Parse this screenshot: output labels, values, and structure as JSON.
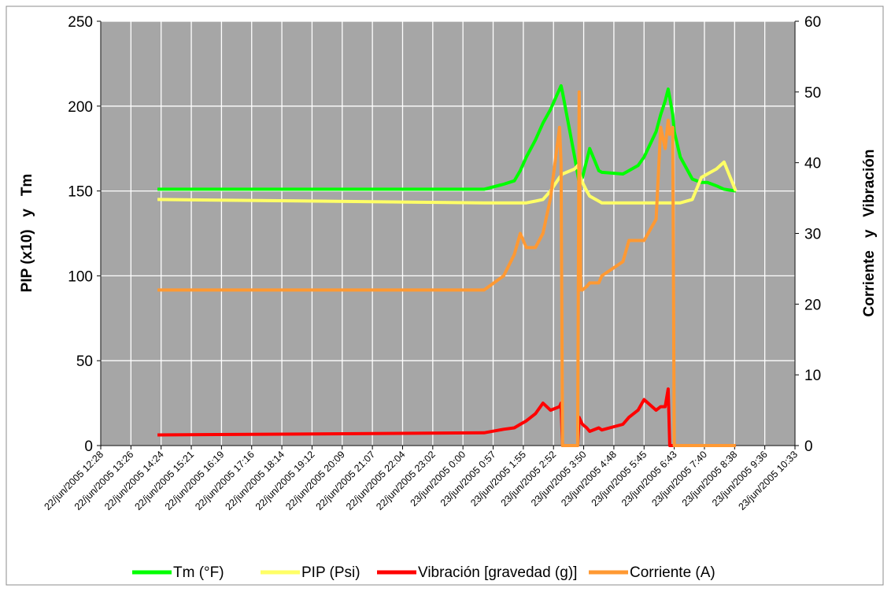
{
  "chart_data": {
    "type": "line",
    "y_label": "PIP (x10)   y   Tm",
    "y2_label": "Corriente   y   Vibración",
    "xlim": [
      0,
      23
    ],
    "xticks": [
      {
        "value": 0,
        "label": "22/jun/2005 12:28"
      },
      {
        "value": 1,
        "label": "22/jun/2005 13:26"
      },
      {
        "value": 2,
        "label": "22/jun/2005 14:24"
      },
      {
        "value": 3,
        "label": "22/jun/2005 15:21"
      },
      {
        "value": 4,
        "label": "22/jun/2005 16:19"
      },
      {
        "value": 5,
        "label": "22/jun/2005 17:16"
      },
      {
        "value": 6,
        "label": "22/jun/2005 18:14"
      },
      {
        "value": 7,
        "label": "22/jun/2005 19:12"
      },
      {
        "value": 8,
        "label": "22/jun/2005 20:09"
      },
      {
        "value": 9,
        "label": "22/jun/2005 21:07"
      },
      {
        "value": 10,
        "label": "22/jun/2005 22:04"
      },
      {
        "value": 11,
        "label": "22/jun/2005 23:02"
      },
      {
        "value": 12,
        "label": "23/jun/2005 0:00"
      },
      {
        "value": 13,
        "label": "23/jun/2005 0:57"
      },
      {
        "value": 14,
        "label": "23/jun/2005 1:55"
      },
      {
        "value": 15,
        "label": "23/jun/2005 2:52"
      },
      {
        "value": 16,
        "label": "23/jun/2005 3:50"
      },
      {
        "value": 17,
        "label": "23/jun/2005 4:48"
      },
      {
        "value": 18,
        "label": "23/jun/2005 5:45"
      },
      {
        "value": 19,
        "label": "23/jun/2005 6:43"
      },
      {
        "value": 20,
        "label": "23/jun/2005 7:40"
      },
      {
        "value": 21,
        "label": "23/jun/2005 8:38"
      },
      {
        "value": 22,
        "label": "23/jun/2005 9:36"
      },
      {
        "value": 23,
        "label": "23/jun/2005 10:33"
      }
    ],
    "ylim": [
      0,
      250
    ],
    "yticks": [
      0,
      50,
      100,
      150,
      200,
      250
    ],
    "y2lim": [
      0,
      60
    ],
    "y2ticks": [
      0,
      10,
      20,
      30,
      40,
      50,
      60
    ],
    "grid": true,
    "legend": "bottom",
    "x": [
      1.88,
      12.7,
      13.35,
      13.7,
      13.9,
      14.1,
      14.4,
      14.65,
      14.9,
      15.2,
      15.25,
      15.3,
      15.7,
      15.8,
      15.85,
      15.9,
      15.96,
      16.1,
      16.2,
      16.5,
      16.6,
      17.3,
      17.5,
      17.8,
      18.0,
      18.4,
      18.55,
      18.7,
      18.8,
      18.85,
      18.95,
      19.0,
      19.2,
      19.6,
      19.9,
      20.1,
      20.4,
      20.65,
      21.04
    ],
    "series": [
      {
        "name": "Tm (°F)",
        "color": "#00ff00",
        "values": [
          151,
          151,
          154,
          156,
          162,
          170,
          180,
          190,
          198,
          210,
          212,
          208,
          170,
          160,
          155,
          156,
          158,
          168,
          175,
          162,
          161,
          160,
          162,
          165,
          170,
          185,
          195,
          203,
          210,
          205,
          195,
          185,
          170,
          157,
          155,
          155,
          153,
          151,
          150
        ]
      },
      {
        "name": "PIP (Psi)",
        "color": "#ffff66",
        "values": [
          145,
          143,
          143,
          143,
          143,
          143,
          144,
          145,
          150,
          158,
          159,
          160,
          163,
          165,
          162,
          158,
          155,
          150,
          147,
          144,
          143,
          143,
          143,
          143,
          143,
          143,
          143,
          143,
          143,
          143,
          143,
          143,
          143,
          145,
          158,
          160,
          163,
          167,
          150
        ]
      },
      {
        "name": "Vibración [gravedad (g)]",
        "color": "#ff0000",
        "axis": "y2",
        "values": [
          1.5,
          1.8,
          2.3,
          2.5,
          3,
          3.5,
          4.5,
          6,
          5,
          5.5,
          6,
          0,
          0,
          0,
          4,
          3.5,
          3,
          2.5,
          2,
          2.5,
          2.2,
          3,
          4,
          5,
          6.5,
          5,
          5.5,
          5.5,
          8,
          0,
          0,
          0,
          0,
          0,
          0,
          0,
          0,
          0,
          0
        ]
      },
      {
        "name": "Corriente (A)",
        "color": "#ff9933",
        "axis": "y2",
        "values": [
          22,
          22,
          24,
          27,
          30,
          28,
          28,
          30,
          35,
          45,
          40,
          0,
          0,
          0,
          50,
          22,
          22,
          22.5,
          23,
          23,
          24,
          26,
          29,
          29,
          29,
          32,
          45,
          42,
          46,
          44,
          45,
          0,
          0,
          0,
          0,
          0,
          0,
          0,
          0
        ]
      }
    ]
  }
}
